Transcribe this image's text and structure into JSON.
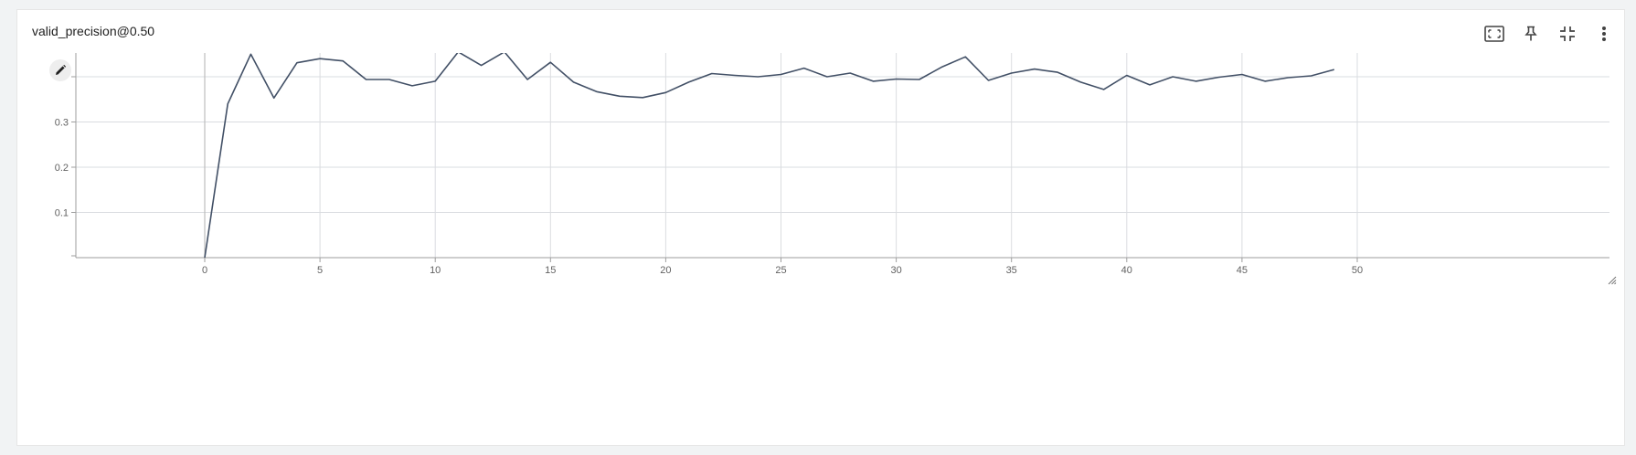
{
  "card": {
    "title": "valid_precision@0.50"
  },
  "toolbar": {
    "icons": [
      "fit-to-data-icon",
      "pin-icon",
      "collapse-icon",
      "more-vert-icon"
    ]
  },
  "colors": {
    "line": "#425066",
    "grid": "#dadce0",
    "axis": "#9e9e9e",
    "tick_text": "#616161"
  },
  "chart_data": {
    "type": "line",
    "title": "",
    "xlabel": "",
    "ylabel": "",
    "xlim": [
      -5,
      55
    ],
    "ylim": [
      0,
      0.45
    ],
    "x_ticks": [
      0,
      5,
      10,
      15,
      20,
      25,
      30,
      35,
      40,
      45,
      50
    ],
    "y_ticks": [
      0.1,
      0.2,
      0.3
    ],
    "x_tick_labels": [
      "0",
      "5",
      "10",
      "15",
      "20",
      "25",
      "30",
      "35",
      "40",
      "45",
      "50"
    ],
    "y_tick_labels": [
      "0.1",
      "0.2",
      "0.3"
    ],
    "grid": true,
    "series": [
      {
        "values": [
          [
            0,
            0.0
          ],
          [
            1,
            0.34
          ],
          [
            2,
            0.45
          ],
          [
            3,
            0.353
          ],
          [
            4,
            0.431
          ],
          [
            5,
            0.44
          ],
          [
            6,
            0.435
          ],
          [
            7,
            0.394
          ],
          [
            8,
            0.394
          ],
          [
            9,
            0.38
          ],
          [
            10,
            0.39
          ],
          [
            11,
            0.455
          ],
          [
            12,
            0.425
          ],
          [
            13,
            0.455
          ],
          [
            14,
            0.394
          ],
          [
            15,
            0.432
          ],
          [
            16,
            0.388
          ],
          [
            17,
            0.367
          ],
          [
            18,
            0.357
          ],
          [
            19,
            0.354
          ],
          [
            20,
            0.365
          ],
          [
            21,
            0.388
          ],
          [
            22,
            0.407
          ],
          [
            23,
            0.403
          ],
          [
            24,
            0.4
          ],
          [
            25,
            0.405
          ],
          [
            26,
            0.419
          ],
          [
            27,
            0.4
          ],
          [
            28,
            0.408
          ],
          [
            29,
            0.39
          ],
          [
            30,
            0.395
          ],
          [
            31,
            0.394
          ],
          [
            32,
            0.422
          ],
          [
            33,
            0.444
          ],
          [
            34,
            0.392
          ],
          [
            35,
            0.408
          ],
          [
            36,
            0.417
          ],
          [
            37,
            0.41
          ],
          [
            38,
            0.388
          ],
          [
            39,
            0.372
          ],
          [
            40,
            0.403
          ],
          [
            41,
            0.382
          ],
          [
            42,
            0.4
          ],
          [
            43,
            0.39
          ],
          [
            44,
            0.399
          ],
          [
            45,
            0.405
          ],
          [
            46,
            0.39
          ],
          [
            47,
            0.398
          ],
          [
            48,
            0.402
          ],
          [
            49,
            0.416
          ]
        ]
      }
    ]
  }
}
